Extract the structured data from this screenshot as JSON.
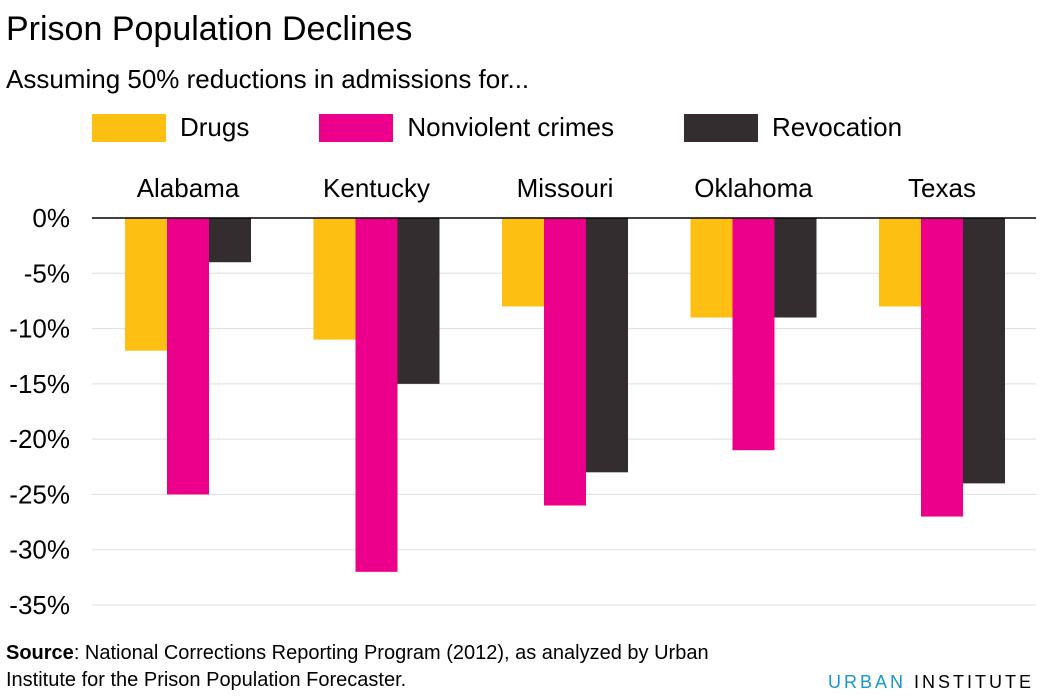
{
  "header": {
    "title": "Prison Population Declines",
    "subtitle": "Assuming 50% reductions in admissions for..."
  },
  "legend": [
    {
      "label": "Drugs",
      "color": "#fdbf11"
    },
    {
      "label": "Nonviolent crimes",
      "color": "#ec008b"
    },
    {
      "label": "Revocation",
      "color": "#332d2f"
    }
  ],
  "chart_data": {
    "type": "bar",
    "categories": [
      "Alabama",
      "Kentucky",
      "Missouri",
      "Oklahoma",
      "Texas"
    ],
    "series": [
      {
        "name": "Drugs",
        "color": "#fdbf11",
        "values": [
          -12,
          -11,
          -8,
          -9,
          -8
        ]
      },
      {
        "name": "Nonviolent crimes",
        "color": "#ec008b",
        "values": [
          -25,
          -32,
          -26,
          -21,
          -27
        ]
      },
      {
        "name": "Revocation",
        "color": "#332d2f",
        "values": [
          -4,
          -15,
          -23,
          -9,
          -24
        ]
      }
    ],
    "y_ticks": [
      "0%",
      "-5%",
      "-10%",
      "-15%",
      "-20%",
      "-25%",
      "-30%",
      "-35%"
    ],
    "y_tick_values": [
      0,
      -5,
      -10,
      -15,
      -20,
      -25,
      -30,
      -35
    ],
    "ylim": [
      -35,
      0
    ],
    "category_labels_position": "top",
    "grid": true,
    "legend_position": "top"
  },
  "footer": {
    "source_label": "Source",
    "source_text": ": National Corrections Reporting Program (2012), as analyzed by Urban Institute for the Prison Population Forecaster.",
    "brand_urban": "URBAN",
    "brand_institute": "INSTITUTE"
  }
}
